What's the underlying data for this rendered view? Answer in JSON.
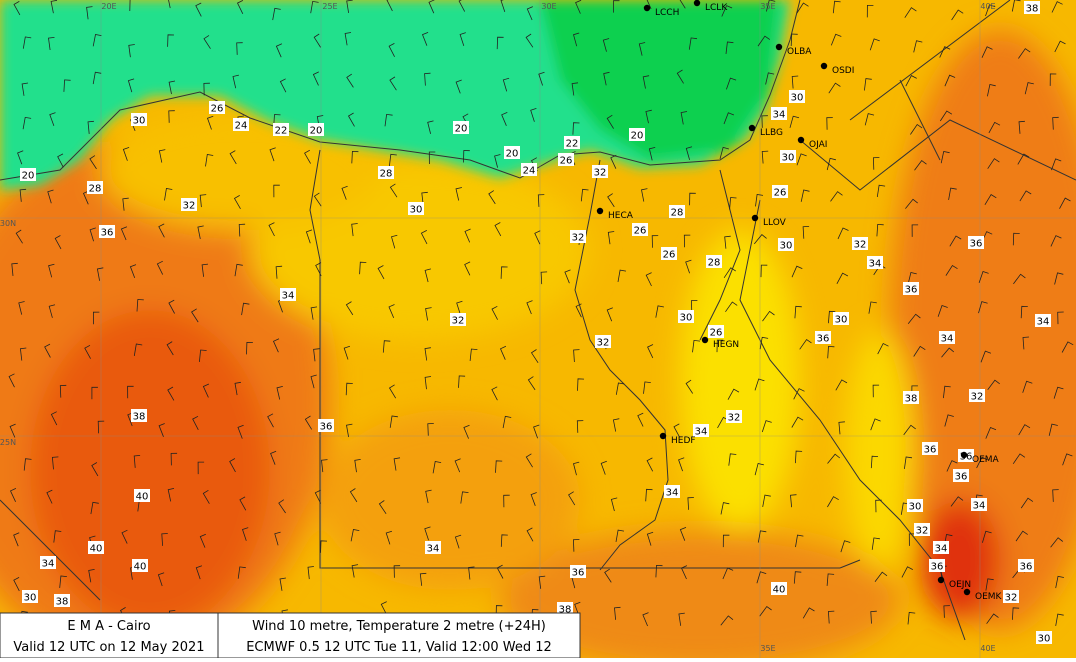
{
  "grid_labels": [
    "20E",
    "25E",
    "30E",
    "35E",
    "40E",
    "30N",
    "25N",
    "35E",
    "40E"
  ],
  "stations": [
    "LCCH",
    "LCLK",
    "OLBA",
    "OSDI",
    "LLBG",
    "OJAI",
    "HECA",
    "LLOV",
    "HEGN",
    "HEDF",
    "OEMA",
    "OEJN",
    "OEMK"
  ],
  "temperature_labels": [
    38,
    26,
    30,
    24,
    22,
    20,
    20,
    20,
    22,
    20,
    26,
    24,
    32,
    28,
    20,
    28,
    32,
    30,
    28,
    36,
    32,
    26,
    26,
    28,
    30,
    32,
    36,
    34,
    34,
    36,
    32,
    30,
    26,
    30,
    34,
    32,
    36,
    34,
    38,
    38,
    32,
    32,
    36,
    34,
    36,
    36,
    34,
    36,
    40,
    34,
    30,
    32,
    34,
    34,
    40,
    36,
    36,
    34,
    40,
    36,
    40,
    30,
    38,
    32,
    38,
    30,
    30,
    34,
    30,
    26
  ],
  "footer": {
    "agency": "E M A  -  Cairo",
    "valid": "Valid 12 UTC on 12 May 2021",
    "product": "Wind  10 metre, Temperature  2 metre (+24H)",
    "model": "ECMWF 0.5 12 UTC Tue 11, Valid 12:00 Wed 12"
  }
}
